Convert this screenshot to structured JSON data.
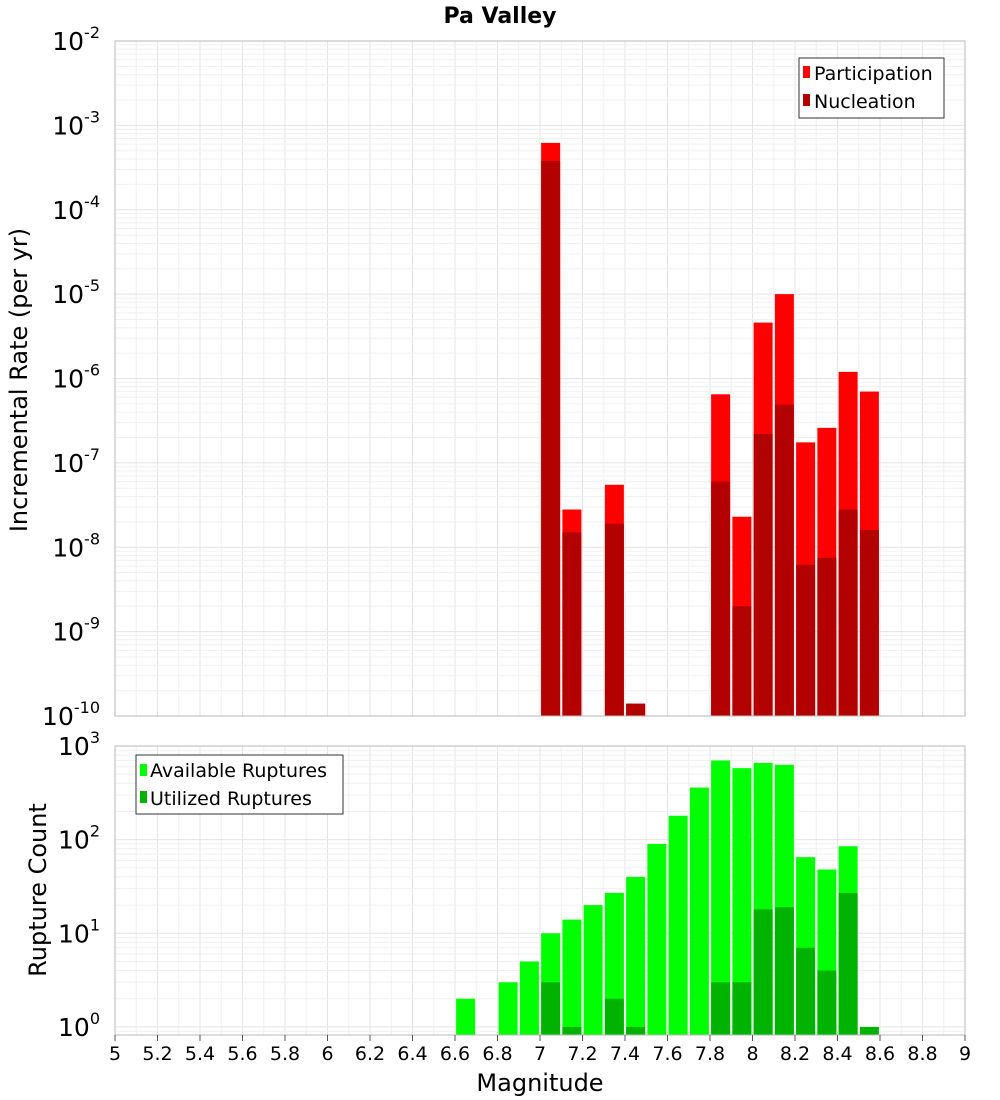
{
  "chart_data": [
    {
      "type": "bar",
      "title": "Pa Valley",
      "xlabel": "",
      "ylabel": "Incremental Rate (per yr)",
      "y_scale": "log",
      "ylim": [
        1e-10,
        0.01
      ],
      "xlim": [
        5,
        9
      ],
      "grid": true,
      "legend_position": "top-right",
      "y_tick_labels": [
        {
          "base": "10",
          "exp": "-2"
        },
        {
          "base": "10",
          "exp": "-3"
        },
        {
          "base": "10",
          "exp": "-4"
        },
        {
          "base": "10",
          "exp": "-5"
        },
        {
          "base": "10",
          "exp": "-6"
        },
        {
          "base": "10",
          "exp": "-7"
        },
        {
          "base": "10",
          "exp": "-8"
        },
        {
          "base": "10",
          "exp": "-9"
        },
        {
          "base": "10",
          "exp": "-10"
        }
      ],
      "series": [
        {
          "name": "Participation",
          "color": "#ff0000",
          "x": [
            7.05,
            7.15,
            7.35,
            7.45,
            7.85,
            7.95,
            8.05,
            8.15,
            8.25,
            8.35,
            8.45,
            8.55
          ],
          "values": [
            0.00062,
            2.8e-08,
            5.5e-08,
            1.4e-10,
            6.5e-07,
            2.3e-08,
            4.6e-06,
            1e-05,
            1.75e-07,
            2.6e-07,
            1.2e-06,
            7e-07
          ]
        },
        {
          "name": "Nucleation",
          "color": "#b30000",
          "x": [
            7.05,
            7.15,
            7.35,
            7.45,
            7.85,
            7.95,
            8.05,
            8.15,
            8.25,
            8.35,
            8.45,
            8.55
          ],
          "values": [
            0.00038,
            1.5e-08,
            1.9e-08,
            1.4e-10,
            6e-08,
            2e-09,
            2.2e-07,
            4.9e-07,
            6.2e-09,
            7.5e-09,
            2.8e-08,
            1.6e-08
          ]
        }
      ]
    },
    {
      "type": "bar",
      "title": "",
      "xlabel": "Magnitude",
      "ylabel": "Rupture Count",
      "y_scale": "log",
      "ylim": [
        0.82,
        1000
      ],
      "xlim": [
        5,
        9
      ],
      "grid": true,
      "legend_position": "top-left",
      "x_tick_labels": [
        "5",
        "5.2",
        "5.4",
        "5.6",
        "5.8",
        "6",
        "6.2",
        "6.4",
        "6.6",
        "6.8",
        "7",
        "7.2",
        "7.4",
        "7.6",
        "7.8",
        "8",
        "8.2",
        "8.4",
        "8.6",
        "8.8",
        "9"
      ],
      "y_tick_labels": [
        {
          "base": "10",
          "exp": "3"
        },
        {
          "base": "10",
          "exp": "2"
        },
        {
          "base": "10",
          "exp": "1"
        },
        {
          "base": "10",
          "exp": "0"
        }
      ],
      "series": [
        {
          "name": "Available Ruptures",
          "color": "#00ff00",
          "x": [
            6.65,
            6.85,
            6.95,
            7.05,
            7.15,
            7.25,
            7.35,
            7.45,
            7.55,
            7.65,
            7.75,
            7.85,
            7.95,
            8.05,
            8.15,
            8.25,
            8.35,
            8.45
          ],
          "values": [
            2,
            3,
            5,
            10,
            14,
            20,
            27,
            40,
            90,
            180,
            360,
            700,
            580,
            660,
            630,
            65,
            48,
            85
          ]
        },
        {
          "name": "Utilized Ruptures",
          "color": "#00b300",
          "x": [
            7.05,
            7.15,
            7.35,
            7.45,
            7.85,
            7.95,
            8.05,
            8.15,
            8.25,
            8.35,
            8.45,
            8.55
          ],
          "values": [
            3,
            1,
            2,
            1,
            3,
            3,
            18,
            19,
            7,
            4,
            27,
            1
          ]
        }
      ]
    }
  ]
}
